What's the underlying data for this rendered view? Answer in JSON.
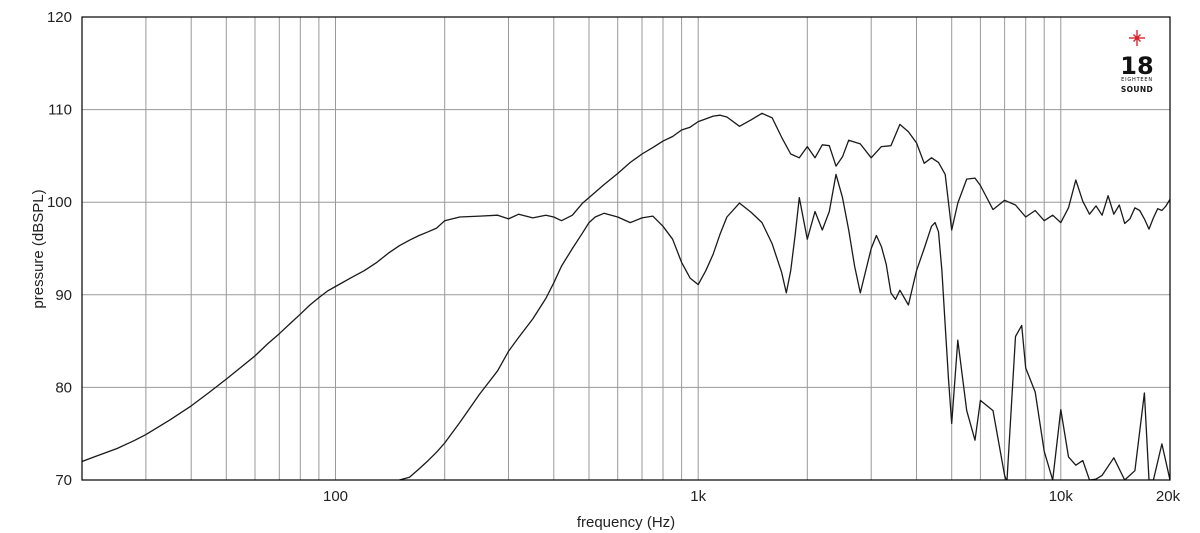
{
  "chart_data": {
    "type": "line",
    "xlabel": "frequency (Hz)",
    "ylabel": "pressure (dBSPL)",
    "xscale": "log",
    "xlim": [
      20,
      20000
    ],
    "ylim": [
      70,
      120
    ],
    "yticks": [
      70,
      80,
      90,
      100,
      110,
      120
    ],
    "xticks": [
      {
        "value": 100,
        "label": "100"
      },
      {
        "value": 1000,
        "label": "1k"
      },
      {
        "value": 10000,
        "label": "10k"
      },
      {
        "value": 20000,
        "label": "20k"
      }
    ],
    "grid": true,
    "series": [
      {
        "x": [
          20,
          22,
          25,
          28,
          30,
          35,
          40,
          45,
          50,
          55,
          60,
          65,
          70,
          75,
          80,
          85,
          90,
          95,
          100,
          110,
          120,
          130,
          140,
          150,
          160,
          170,
          180,
          190,
          200,
          220,
          250,
          280,
          300,
          320,
          350,
          380,
          400,
          420,
          450,
          480,
          500,
          550,
          600,
          650,
          700,
          750,
          800,
          850,
          900,
          950,
          1000,
          1050,
          1100,
          1150,
          1200,
          1300,
          1400,
          1500,
          1600,
          1700,
          1800,
          1900,
          2000,
          2100,
          2200,
          2300,
          2400,
          2500,
          2600,
          2800,
          3000,
          3200,
          3400,
          3600,
          3800,
          4000,
          4200,
          4400,
          4600,
          4800,
          5000,
          5200,
          5500,
          5800,
          6000,
          6500,
          7000,
          7500,
          8000,
          8500,
          9000,
          9500,
          10000,
          10500,
          11000,
          11500,
          12000,
          12500,
          13000,
          13500,
          14000,
          14500,
          15000,
          15500,
          16000,
          16500,
          17000,
          17500,
          18000,
          18500,
          19000,
          19500,
          20000
        ],
        "values": [
          72.0,
          72.6,
          73.4,
          74.3,
          74.9,
          76.5,
          78.0,
          79.5,
          80.9,
          82.2,
          83.4,
          84.7,
          85.8,
          86.9,
          87.9,
          88.9,
          89.7,
          90.4,
          90.9,
          91.8,
          92.6,
          93.5,
          94.5,
          95.3,
          95.9,
          96.4,
          96.8,
          97.2,
          98.0,
          98.4,
          98.5,
          98.6,
          98.2,
          98.7,
          98.3,
          98.6,
          98.4,
          98.0,
          98.6,
          99.9,
          100.5,
          101.9,
          103.1,
          104.3,
          105.2,
          105.9,
          106.6,
          107.1,
          107.8,
          108.1,
          108.7,
          109.0,
          109.3,
          109.4,
          109.2,
          108.2,
          108.9,
          109.6,
          109.1,
          107.0,
          105.2,
          104.8,
          106.0,
          104.8,
          106.2,
          106.1,
          103.9,
          104.9,
          106.7,
          106.3,
          104.8,
          106.0,
          106.1,
          108.4,
          107.6,
          106.4,
          104.2,
          104.8,
          104.3,
          103.0,
          97.0,
          99.9,
          102.5,
          102.6,
          101.8,
          99.2,
          100.2,
          99.7,
          98.4,
          99.1,
          98.0,
          98.6,
          97.8,
          99.4,
          102.4,
          100.1,
          98.7,
          99.6,
          98.6,
          100.7,
          98.7,
          99.7,
          97.7,
          98.2,
          99.4,
          99.1,
          98.2,
          97.1,
          98.3,
          99.3,
          99.1,
          99.6,
          100.3
        ]
      },
      {
        "x": [
          150,
          160,
          170,
          180,
          190,
          200,
          220,
          250,
          280,
          300,
          320,
          350,
          380,
          400,
          420,
          450,
          480,
          500,
          520,
          550,
          600,
          650,
          700,
          750,
          800,
          850,
          900,
          950,
          1000,
          1050,
          1100,
          1150,
          1200,
          1300,
          1400,
          1500,
          1600,
          1700,
          1750,
          1800,
          1850,
          1900,
          2000,
          2100,
          2200,
          2300,
          2400,
          2500,
          2600,
          2700,
          2800,
          3000,
          3100,
          3200,
          3300,
          3400,
          3500,
          3600,
          3800,
          4000,
          4200,
          4400,
          4500,
          4600,
          4700,
          4800,
          4900,
          5000,
          5200,
          5500,
          5800,
          6000,
          6500,
          7000,
          7100,
          7500,
          7800,
          8000,
          8500,
          9000,
          9500,
          10000,
          10500,
          11000,
          11500,
          12000,
          12500,
          13000,
          14000,
          15000,
          16000,
          17000,
          17500,
          18000,
          19000,
          20000
        ],
        "values": [
          70.0,
          70.3,
          71.2,
          72.1,
          73.0,
          74.0,
          76.2,
          79.3,
          81.8,
          83.9,
          85.4,
          87.4,
          89.6,
          91.3,
          93.1,
          95.0,
          96.7,
          97.8,
          98.4,
          98.8,
          98.4,
          97.8,
          98.3,
          98.5,
          97.4,
          96.0,
          93.5,
          91.8,
          91.1,
          92.6,
          94.4,
          96.6,
          98.4,
          99.9,
          98.9,
          97.8,
          95.5,
          92.4,
          90.2,
          92.6,
          96.4,
          100.5,
          96.0,
          99.0,
          97.0,
          99.0,
          103.0,
          100.5,
          97.0,
          93.1,
          90.2,
          95.0,
          96.4,
          95.2,
          93.3,
          90.2,
          89.5,
          90.5,
          88.9,
          92.6,
          95.0,
          97.4,
          97.8,
          96.8,
          92.6,
          86.7,
          80.9,
          76.1,
          85.1,
          77.5,
          74.3,
          78.6,
          77.5,
          70.5,
          69.8,
          85.5,
          86.7,
          82.1,
          79.5,
          73.1,
          70.0,
          77.6,
          72.5,
          71.6,
          72.1,
          70.0,
          70.1,
          70.5,
          72.4,
          70.0,
          71.0,
          79.4,
          70.0,
          70.0,
          73.9,
          70.0
        ]
      }
    ]
  },
  "logo": {
    "number": "18",
    "small": "EIGHTEEN",
    "word": "SOUND",
    "accent": "#d7262e"
  }
}
